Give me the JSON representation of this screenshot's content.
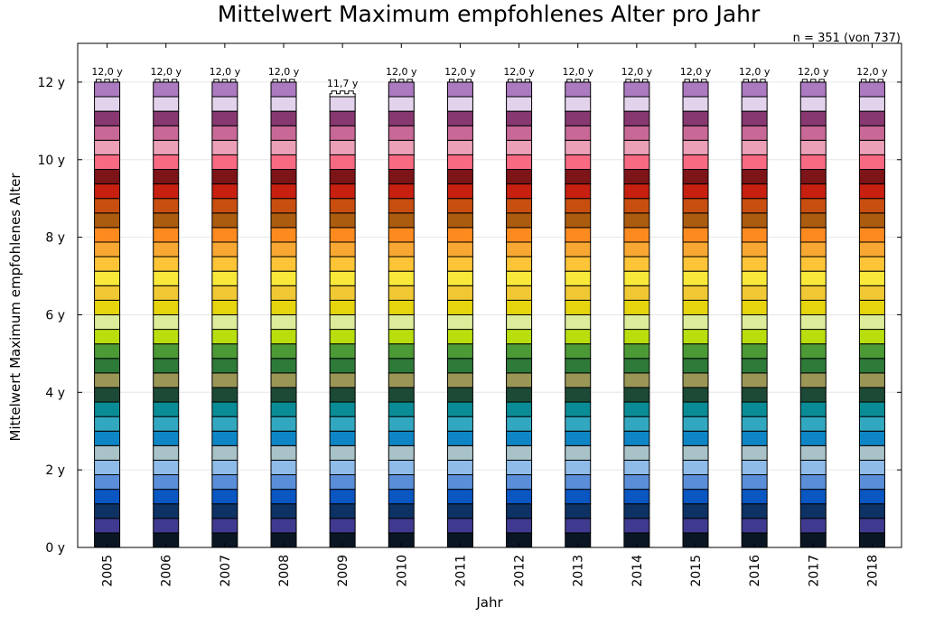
{
  "chart_data": {
    "type": "bar",
    "title": "Mittelwert Maximum empfohlenes Alter pro Jahr",
    "xlabel": "Jahr",
    "ylabel": "Mittelwert Maximum empfohlenes Alter",
    "annotation": "n = 351 (von 737)",
    "categories": [
      "2005",
      "2006",
      "2007",
      "2008",
      "2009",
      "2010",
      "2011",
      "2012",
      "2013",
      "2014",
      "2015",
      "2016",
      "2017",
      "2018"
    ],
    "values": [
      12.0,
      12.0,
      12.0,
      12.0,
      11.7,
      12.0,
      12.0,
      12.0,
      12.0,
      12.0,
      12.0,
      12.0,
      12.0,
      12.0
    ],
    "value_labels": [
      "12,0 y",
      "12,0 y",
      "12,0 y",
      "12,0 y",
      "11,7 y",
      "12,0 y",
      "12,0 y",
      "12,0 y",
      "12,0 y",
      "12,0 y",
      "12,0 y",
      "12,0 y",
      "12,0 y",
      "12,0 y"
    ],
    "ylim": [
      0,
      13
    ],
    "yticks": [
      {
        "value": 0,
        "label": "0 y"
      },
      {
        "value": 2,
        "label": "2 y"
      },
      {
        "value": 4,
        "label": "4 y"
      },
      {
        "value": 6,
        "label": "6 y"
      },
      {
        "value": 8,
        "label": "8 y"
      },
      {
        "value": 10,
        "label": "10 y"
      },
      {
        "value": 12,
        "label": "12 y"
      }
    ],
    "grid": true,
    "segment_step": 0.375,
    "segment_colors": [
      "#0a1624",
      "#3f3a8f",
      "#0e3264",
      "#0a56c2",
      "#5a8ed8",
      "#8ebbe8",
      "#a8c2c8",
      "#0e86c6",
      "#32a8c0",
      "#0a8c96",
      "#1c4a36",
      "#9a9656",
      "#2e7a38",
      "#4c9a36",
      "#b8de0e",
      "#dcec9a",
      "#e6d40e",
      "#f0c834",
      "#f8e83a",
      "#fcc436",
      "#f8a832",
      "#fc8a1e",
      "#ac5c0e",
      "#c84e10",
      "#c82010",
      "#7c1418",
      "#f86a82",
      "#eca0b8",
      "#c86896",
      "#883870",
      "#e2d2ec",
      "#ac7ac0"
    ]
  }
}
